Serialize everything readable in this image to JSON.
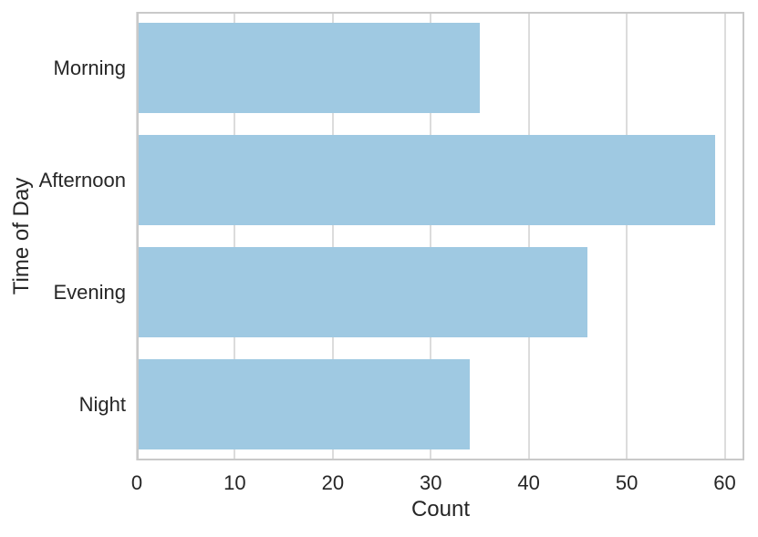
{
  "chart_data": {
    "type": "bar",
    "orientation": "horizontal",
    "title": "",
    "xlabel": "Count",
    "ylabel": "Time of Day",
    "categories": [
      "Morning",
      "Afternoon",
      "Evening",
      "Night"
    ],
    "values": [
      35,
      59,
      46,
      34
    ],
    "xticks": [
      0,
      10,
      20,
      30,
      40,
      50,
      60
    ],
    "xlim": [
      0,
      62
    ],
    "grid": "vertical",
    "legend": "none",
    "bar_color": "#9fc9e2",
    "grid_color": "#dcdcdc",
    "frame_color": "#c9c9c9",
    "text_color": "#262626",
    "background_color": "#ffffff"
  }
}
